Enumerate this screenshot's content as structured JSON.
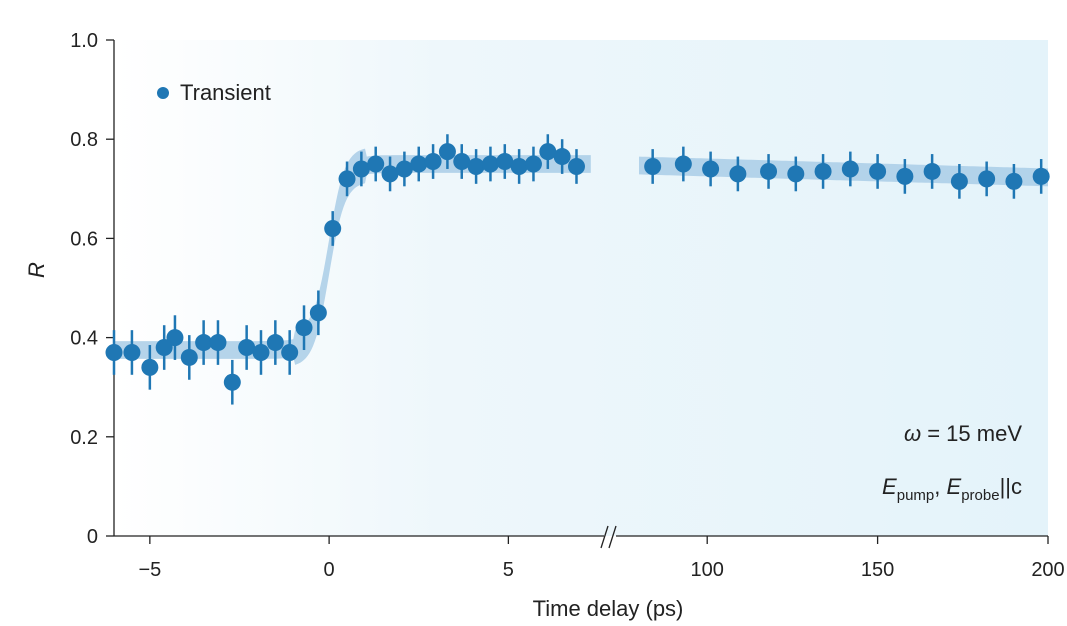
{
  "chart_data": {
    "type": "scatter",
    "xlabel": "Time delay (ps)",
    "ylabel": "R",
    "ylim": [
      0,
      1.0
    ],
    "yticks": [
      "0",
      "0.2",
      "0.4",
      "0.6",
      "0.8",
      "1.0"
    ],
    "ytick_values": [
      0,
      0.2,
      0.4,
      0.6,
      0.8,
      1.0
    ],
    "x_segments": [
      {
        "range": [
          -6,
          7.5
        ],
        "ticks": [
          "−5",
          "0",
          "5"
        ],
        "tick_values": [
          -5,
          0,
          5
        ]
      },
      {
        "range": [
          75,
          200
        ],
        "ticks": [
          "100",
          "150",
          "200"
        ],
        "tick_values": [
          100,
          150,
          200
        ]
      }
    ],
    "axis_break": "//",
    "legend": {
      "label": "Transient",
      "placement": "top-left"
    },
    "annotations": {
      "omega": {
        "symbol": "ω",
        "text": " = 15 meV"
      },
      "polarization": {
        "e": "E",
        "pump": "pump",
        "probe": "probe",
        "sep": ", ",
        "suffix": "||c"
      }
    },
    "colors": {
      "marker": "#1f77b4",
      "fit_band": "#a9cde6",
      "background_gradient": "#e4f3fa"
    },
    "series": [
      {
        "name": "Transient",
        "x": [
          -6,
          -5.5,
          -5,
          -4.6,
          -4.3,
          -3.9,
          -3.5,
          -3.1,
          -2.7,
          -2.3,
          -1.9,
          -1.5,
          -1.1,
          -0.7,
          -0.3,
          0.1,
          0.5,
          0.9,
          1.3,
          1.7,
          2.1,
          2.5,
          2.9,
          3.3,
          3.7,
          4.1,
          4.5,
          4.9,
          5.3,
          5.7,
          6.1,
          6.5,
          6.9,
          84,
          93,
          101,
          109,
          118,
          126,
          134,
          142,
          150,
          158,
          166,
          174,
          182,
          190,
          198
        ],
        "y": [
          0.37,
          0.37,
          0.34,
          0.38,
          0.4,
          0.36,
          0.39,
          0.39,
          0.31,
          0.38,
          0.37,
          0.39,
          0.37,
          0.42,
          0.45,
          0.62,
          0.72,
          0.74,
          0.75,
          0.73,
          0.74,
          0.75,
          0.755,
          0.775,
          0.755,
          0.745,
          0.75,
          0.755,
          0.745,
          0.75,
          0.775,
          0.765,
          0.745,
          0.745,
          0.75,
          0.74,
          0.73,
          0.735,
          0.73,
          0.735,
          0.74,
          0.735,
          0.725,
          0.735,
          0.715,
          0.72,
          0.715,
          0.725
        ],
        "error": [
          0.045,
          0.045,
          0.045,
          0.045,
          0.045,
          0.045,
          0.045,
          0.045,
          0.045,
          0.045,
          0.045,
          0.045,
          0.045,
          0.045,
          0.045,
          0.035,
          0.035,
          0.035,
          0.035,
          0.035,
          0.035,
          0.035,
          0.035,
          0.035,
          0.035,
          0.035,
          0.035,
          0.035,
          0.035,
          0.035,
          0.035,
          0.035,
          0.035,
          0.035,
          0.035,
          0.035,
          0.035,
          0.035,
          0.035,
          0.035,
          0.035,
          0.035,
          0.035,
          0.035,
          0.035,
          0.035,
          0.035,
          0.035
        ]
      }
    ]
  }
}
